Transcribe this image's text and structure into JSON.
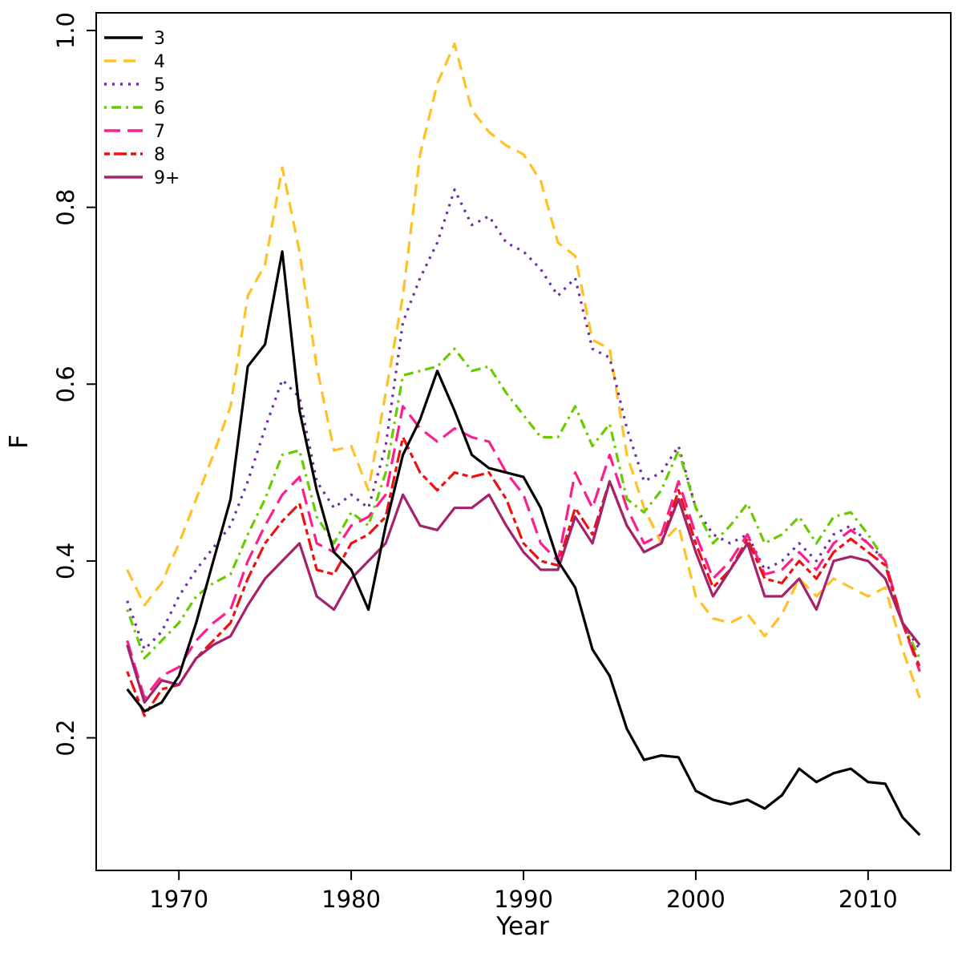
{
  "figure": {
    "background": "#ffffff",
    "axis_color": "#000000"
  },
  "chart_data": {
    "type": "line",
    "title": "",
    "xlabel": "Year",
    "ylabel": "F",
    "xlim": [
      1965.2,
      2014.8
    ],
    "ylim": [
      0.05,
      1.02
    ],
    "x_ticks": [
      1970,
      1980,
      1990,
      2000,
      2010
    ],
    "y_ticks": [
      0.2,
      0.4,
      0.6,
      0.8,
      1.0
    ],
    "y_tick_labels": [
      "0.2",
      "0.4",
      "0.6",
      "0.8",
      "1.0"
    ],
    "grid": false,
    "legend_position": "top-left",
    "x": [
      1967,
      1968,
      1969,
      1970,
      1971,
      1972,
      1973,
      1974,
      1975,
      1976,
      1977,
      1978,
      1979,
      1980,
      1981,
      1982,
      1983,
      1984,
      1985,
      1986,
      1987,
      1988,
      1989,
      1990,
      1991,
      1992,
      1993,
      1994,
      1995,
      1996,
      1997,
      1998,
      1999,
      2000,
      2001,
      2002,
      2003,
      2004,
      2005,
      2006,
      2007,
      2008,
      2009,
      2010,
      2011,
      2012,
      2013
    ],
    "series": [
      {
        "name": "age-3",
        "label": "3",
        "color": "#000000",
        "linetype": "solid",
        "values": [
          0.255,
          0.23,
          0.24,
          0.27,
          0.33,
          0.4,
          0.47,
          0.62,
          0.645,
          0.75,
          0.57,
          0.48,
          0.41,
          0.39,
          0.345,
          0.44,
          0.52,
          0.56,
          0.615,
          0.57,
          0.52,
          0.505,
          0.5,
          0.495,
          0.46,
          0.4,
          0.37,
          0.3,
          0.27,
          0.21,
          0.175,
          0.18,
          0.178,
          0.14,
          0.13,
          0.125,
          0.13,
          0.12,
          0.135,
          0.165,
          0.15,
          0.16,
          0.165,
          0.15,
          0.148,
          0.11,
          0.09
        ]
      },
      {
        "name": "age-4",
        "label": "4",
        "color": "#FFC125",
        "linetype": "dashed",
        "values": [
          0.39,
          0.35,
          0.375,
          0.42,
          0.47,
          0.52,
          0.575,
          0.7,
          0.735,
          0.845,
          0.75,
          0.62,
          0.525,
          0.53,
          0.48,
          0.59,
          0.7,
          0.86,
          0.94,
          0.985,
          0.91,
          0.885,
          0.87,
          0.86,
          0.83,
          0.76,
          0.745,
          0.65,
          0.64,
          0.52,
          0.46,
          0.42,
          0.44,
          0.36,
          0.335,
          0.33,
          0.34,
          0.315,
          0.34,
          0.38,
          0.36,
          0.38,
          0.37,
          0.36,
          0.37,
          0.3,
          0.245
        ]
      },
      {
        "name": "age-5",
        "label": "5",
        "color": "#6F2DA8",
        "linetype": "dotted",
        "values": [
          0.355,
          0.3,
          0.32,
          0.36,
          0.39,
          0.415,
          0.44,
          0.49,
          0.55,
          0.605,
          0.585,
          0.49,
          0.46,
          0.475,
          0.46,
          0.53,
          0.67,
          0.72,
          0.76,
          0.82,
          0.78,
          0.79,
          0.76,
          0.75,
          0.73,
          0.7,
          0.72,
          0.64,
          0.63,
          0.55,
          0.49,
          0.5,
          0.53,
          0.46,
          0.43,
          0.42,
          0.43,
          0.39,
          0.4,
          0.42,
          0.4,
          0.43,
          0.44,
          0.42,
          0.4,
          0.33,
          0.3
        ]
      },
      {
        "name": "age-6",
        "label": "6",
        "color": "#66CC00",
        "linetype": "dotdash",
        "values": [
          0.345,
          0.29,
          0.31,
          0.33,
          0.36,
          0.375,
          0.385,
          0.43,
          0.47,
          0.52,
          0.525,
          0.45,
          0.42,
          0.455,
          0.44,
          0.5,
          0.61,
          0.615,
          0.62,
          0.64,
          0.615,
          0.62,
          0.59,
          0.565,
          0.54,
          0.54,
          0.575,
          0.53,
          0.555,
          0.47,
          0.455,
          0.48,
          0.525,
          0.46,
          0.42,
          0.44,
          0.465,
          0.42,
          0.43,
          0.45,
          0.42,
          0.45,
          0.455,
          0.43,
          0.4,
          0.33,
          0.29
        ]
      },
      {
        "name": "age-7",
        "label": "7",
        "color": "#FF1D8E",
        "linetype": "longdash",
        "values": [
          0.31,
          0.245,
          0.27,
          0.28,
          0.31,
          0.33,
          0.345,
          0.4,
          0.44,
          0.475,
          0.495,
          0.42,
          0.41,
          0.44,
          0.45,
          0.475,
          0.575,
          0.55,
          0.535,
          0.55,
          0.54,
          0.535,
          0.5,
          0.475,
          0.42,
          0.4,
          0.5,
          0.46,
          0.52,
          0.46,
          0.42,
          0.43,
          0.49,
          0.43,
          0.38,
          0.4,
          0.43,
          0.385,
          0.39,
          0.41,
          0.39,
          0.42,
          0.435,
          0.42,
          0.4,
          0.33,
          0.275
        ]
      },
      {
        "name": "age-8",
        "label": "8",
        "color": "#EE1111",
        "linetype": "twodash",
        "values": [
          0.275,
          0.225,
          0.255,
          0.26,
          0.29,
          0.31,
          0.33,
          0.38,
          0.42,
          0.445,
          0.465,
          0.39,
          0.385,
          0.42,
          0.43,
          0.45,
          0.54,
          0.5,
          0.48,
          0.5,
          0.495,
          0.5,
          0.47,
          0.42,
          0.4,
          0.395,
          0.46,
          0.43,
          0.49,
          0.44,
          0.41,
          0.42,
          0.48,
          0.42,
          0.37,
          0.39,
          0.425,
          0.38,
          0.375,
          0.4,
          0.38,
          0.41,
          0.425,
          0.41,
          0.395,
          0.33,
          0.28
        ]
      },
      {
        "name": "age-9plus",
        "label": "9+",
        "color": "#A5226B",
        "linetype": "solid",
        "values": [
          0.305,
          0.24,
          0.265,
          0.26,
          0.29,
          0.305,
          0.315,
          0.35,
          0.38,
          0.4,
          0.42,
          0.36,
          0.345,
          0.38,
          0.4,
          0.42,
          0.475,
          0.44,
          0.435,
          0.46,
          0.46,
          0.475,
          0.44,
          0.41,
          0.39,
          0.39,
          0.45,
          0.42,
          0.49,
          0.44,
          0.41,
          0.42,
          0.47,
          0.41,
          0.36,
          0.39,
          0.42,
          0.36,
          0.36,
          0.38,
          0.345,
          0.4,
          0.405,
          0.4,
          0.38,
          0.33,
          0.305
        ]
      }
    ]
  }
}
